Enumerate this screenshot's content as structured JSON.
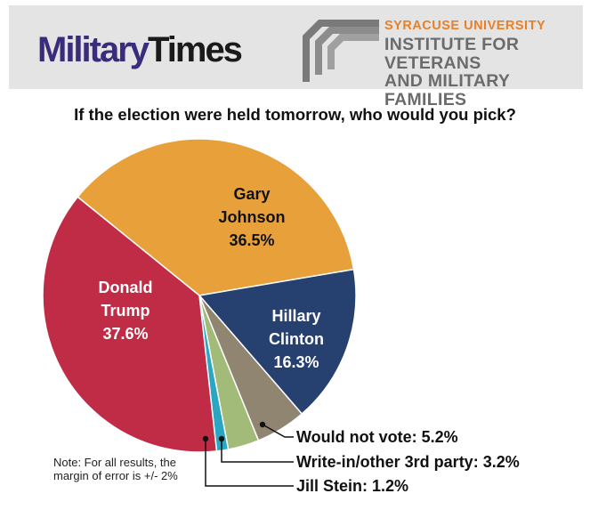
{
  "header": {
    "logo_part1": "Military",
    "logo_part2": "Times",
    "partner_line1": "SYRACUSE UNIVERSITY",
    "partner_line2": "INSTITUTE FOR VETERANS",
    "partner_line3": "AND MILITARY FAMILIES"
  },
  "note": "Note: For all results, the margin of error is +/- 2%",
  "colors": {
    "accent_orange": "#e8802a",
    "logo_purple": "#3a2c7a"
  },
  "chart_data": {
    "type": "pie",
    "title": "If the election were held tomorrow, who would you pick?",
    "slices": [
      {
        "label_lines": [
          "Gary",
          "Johnson",
          "36.5%"
        ],
        "value": 36.5,
        "color": "#e8a03a",
        "label_color": "#111111",
        "callout": null
      },
      {
        "label_lines": [
          "Hillary",
          "Clinton",
          "16.3%"
        ],
        "value": 16.3,
        "color": "#26406f",
        "label_color": "#ffffff",
        "callout": null
      },
      {
        "label_lines": [],
        "value": 5.2,
        "color": "#908571",
        "label_color": "#111111",
        "callout": "Would not vote: 5.2%"
      },
      {
        "label_lines": [],
        "value": 3.2,
        "color": "#a2bb78",
        "label_color": "#111111",
        "callout": "Write-in/other 3rd party: 3.2%"
      },
      {
        "label_lines": [],
        "value": 1.2,
        "color": "#2aa6c2",
        "label_color": "#111111",
        "callout": "Jill Stein: 1.2%"
      },
      {
        "label_lines": [
          "Donald",
          "Trump",
          "37.6%"
        ],
        "value": 37.6,
        "color": "#c02b45",
        "label_color": "#ffffff",
        "callout": null
      }
    ]
  }
}
